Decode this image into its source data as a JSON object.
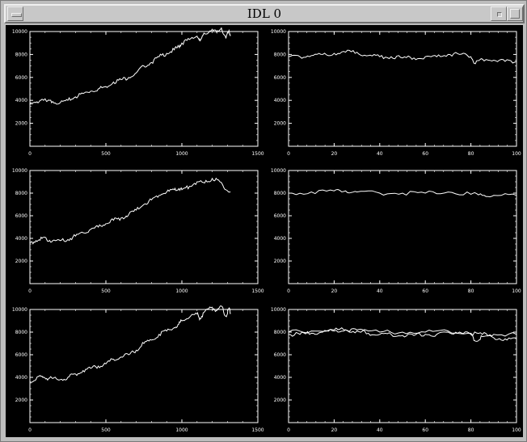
{
  "window": {
    "title": "IDL 0",
    "bg_color": "#bdbdbd",
    "canvas_color": "#000000",
    "line_color": "#ffffff"
  },
  "chart_data": [
    {
      "type": "line",
      "position": "row1-left",
      "xlim": [
        0,
        1500
      ],
      "ylim": [
        0,
        10000
      ],
      "xticks": [
        0,
        500,
        1000,
        1500
      ],
      "yticks": [
        2000,
        4000,
        6000,
        8000,
        10000
      ],
      "xtick_labels": [
        "0",
        "500",
        "1000",
        "1500"
      ],
      "ytick_labels": [
        "2000",
        "4000",
        "6000",
        "8000",
        "10000"
      ],
      "series": [
        {
          "x": [
            0,
            40,
            80,
            110,
            150,
            200,
            250,
            300,
            350,
            400,
            450,
            500,
            550,
            600,
            650,
            700,
            750,
            800,
            850,
            900,
            950,
            980,
            1000,
            1050,
            1100,
            1120,
            1150,
            1200,
            1230,
            1260,
            1290,
            1310,
            1320
          ],
          "values": [
            3600,
            3800,
            4100,
            3900,
            3900,
            3800,
            4000,
            4300,
            4600,
            4800,
            5000,
            5200,
            5600,
            5800,
            6000,
            6400,
            7000,
            7300,
            7800,
            8100,
            8400,
            8700,
            9000,
            9300,
            9600,
            9200,
            9800,
            10200,
            9900,
            10300,
            9400,
            10100,
            9700
          ]
        }
      ]
    },
    {
      "type": "line",
      "position": "row1-right",
      "xlim": [
        0,
        100
      ],
      "ylim": [
        0,
        10000
      ],
      "xticks": [
        0,
        20,
        40,
        60,
        80,
        100
      ],
      "yticks": [
        2000,
        4000,
        6000,
        8000,
        10000
      ],
      "xtick_labels": [
        "0",
        "20",
        "40",
        "60",
        "80",
        "100"
      ],
      "ytick_labels": [
        "2000",
        "4000",
        "6000",
        "8000",
        "10000"
      ],
      "series": [
        {
          "x": [
            0,
            5,
            10,
            15,
            20,
            25,
            30,
            35,
            40,
            45,
            50,
            55,
            60,
            65,
            70,
            75,
            80,
            82,
            85,
            90,
            95,
            100
          ],
          "values": [
            7800,
            7800,
            7900,
            8000,
            8100,
            8200,
            8200,
            7900,
            7800,
            7800,
            7700,
            7700,
            7800,
            7800,
            8000,
            8000,
            7800,
            7200,
            7600,
            7500,
            7400,
            7400
          ]
        }
      ]
    },
    {
      "type": "line",
      "position": "row2-left",
      "xlim": [
        0,
        1500
      ],
      "ylim": [
        0,
        10000
      ],
      "xticks": [
        0,
        500,
        1000,
        1500
      ],
      "yticks": [
        2000,
        4000,
        6000,
        8000,
        10000
      ],
      "xtick_labels": [
        "0",
        "500",
        "1000",
        "1500"
      ],
      "ytick_labels": [
        "2000",
        "4000",
        "6000",
        "8000",
        "10000"
      ],
      "series": [
        {
          "x": [
            0,
            40,
            80,
            110,
            150,
            200,
            250,
            300,
            350,
            400,
            450,
            500,
            550,
            600,
            650,
            700,
            750,
            800,
            850,
            900,
            950,
            980,
            1000,
            1050,
            1100,
            1150,
            1200,
            1250,
            1290,
            1320
          ],
          "values": [
            3600,
            3800,
            4000,
            3900,
            3800,
            3800,
            3900,
            4200,
            4500,
            4800,
            5000,
            5300,
            5600,
            5800,
            6100,
            6500,
            7000,
            7400,
            7800,
            8100,
            8300,
            8400,
            8300,
            8600,
            9000,
            8900,
            9300,
            9000,
            8300,
            8100
          ]
        }
      ]
    },
    {
      "type": "line",
      "position": "row2-right",
      "xlim": [
        0,
        100
      ],
      "ylim": [
        0,
        10000
      ],
      "xticks": [
        0,
        20,
        40,
        60,
        80,
        100
      ],
      "yticks": [
        2000,
        4000,
        6000,
        8000,
        10000
      ],
      "xtick_labels": [
        "0",
        "20",
        "40",
        "60",
        "80",
        "100"
      ],
      "ytick_labels": [
        "2000",
        "4000",
        "6000",
        "8000",
        "10000"
      ],
      "series": [
        {
          "x": [
            0,
            10,
            20,
            25,
            30,
            40,
            50,
            60,
            70,
            80,
            85,
            90,
            100
          ],
          "values": [
            8000,
            8100,
            8200,
            8200,
            8100,
            8000,
            8000,
            8000,
            8100,
            7900,
            7800,
            7800,
            7800
          ]
        }
      ]
    },
    {
      "type": "line",
      "position": "row3-left",
      "xlim": [
        0,
        1500
      ],
      "ylim": [
        0,
        10000
      ],
      "xticks": [
        0,
        500,
        1000,
        1500
      ],
      "yticks": [
        2000,
        4000,
        6000,
        8000,
        10000
      ],
      "xtick_labels": [
        "0",
        "500",
        "1000",
        "1500"
      ],
      "ytick_labels": [
        "2000",
        "4000",
        "6000",
        "8000",
        "10000"
      ],
      "series": [
        {
          "x": [
            0,
            40,
            80,
            110,
            150,
            200,
            250,
            300,
            350,
            400,
            450,
            500,
            550,
            600,
            650,
            700,
            750,
            800,
            850,
            900,
            950,
            980,
            1000,
            1050,
            1100,
            1120,
            1150,
            1200,
            1230,
            1260,
            1290,
            1310,
            1320
          ],
          "values": [
            3600,
            3800,
            4100,
            3900,
            3900,
            3800,
            4000,
            4300,
            4600,
            4800,
            5000,
            5200,
            5600,
            5800,
            6000,
            6400,
            7000,
            7300,
            7800,
            8100,
            8400,
            8700,
            9000,
            9300,
            9600,
            9200,
            9800,
            10200,
            9900,
            10300,
            9400,
            10100,
            9700
          ]
        }
      ]
    },
    {
      "type": "line",
      "position": "row3-right",
      "xlim": [
        0,
        100
      ],
      "ylim": [
        0,
        10000
      ],
      "xticks": [
        0,
        20,
        40,
        60,
        80,
        100
      ],
      "yticks": [
        2000,
        4000,
        6000,
        8000,
        10000
      ],
      "xtick_labels": [
        "0",
        "20",
        "40",
        "60",
        "80",
        "100"
      ],
      "ytick_labels": [
        "2000",
        "4000",
        "6000",
        "8000",
        "10000"
      ],
      "series": [
        {
          "x": [
            0,
            5,
            10,
            15,
            20,
            25,
            30,
            35,
            40,
            45,
            50,
            55,
            60,
            65,
            70,
            75,
            80,
            82,
            85,
            90,
            95,
            100
          ],
          "values": [
            7800,
            7800,
            7900,
            8000,
            8100,
            8200,
            8200,
            7900,
            7800,
            7800,
            7700,
            7700,
            7800,
            7800,
            8000,
            8000,
            7800,
            7200,
            7600,
            7500,
            7400,
            7400
          ]
        },
        {
          "x": [
            0,
            10,
            20,
            25,
            30,
            40,
            50,
            60,
            70,
            80,
            85,
            90,
            100
          ],
          "values": [
            8000,
            8100,
            8200,
            8200,
            8100,
            8000,
            8000,
            8000,
            8100,
            7900,
            7800,
            7800,
            7800
          ]
        }
      ]
    }
  ]
}
